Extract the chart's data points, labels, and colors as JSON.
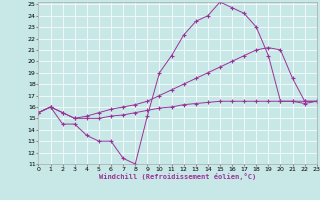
{
  "xlabel": "Windchill (Refroidissement éolien,°C)",
  "background_color": "#c8e8e8",
  "line_color": "#993399",
  "xlim": [
    0,
    23
  ],
  "ylim": [
    11,
    25
  ],
  "xticks": [
    0,
    1,
    2,
    3,
    4,
    5,
    6,
    7,
    8,
    9,
    10,
    11,
    12,
    13,
    14,
    15,
    16,
    17,
    18,
    19,
    20,
    21,
    22,
    23
  ],
  "yticks": [
    11,
    12,
    13,
    14,
    15,
    16,
    17,
    18,
    19,
    20,
    21,
    22,
    23,
    24,
    25
  ],
  "series": [
    {
      "x": [
        0,
        1,
        2,
        3,
        4,
        5,
        6,
        7,
        8,
        9,
        10,
        11,
        12,
        13,
        14,
        15,
        16,
        17,
        18,
        19,
        20,
        21,
        22,
        23
      ],
      "y": [
        15.5,
        16.0,
        14.5,
        14.5,
        13.5,
        13.0,
        13.0,
        11.5,
        11.0,
        15.2,
        19.0,
        20.5,
        22.3,
        23.5,
        24.0,
        25.2,
        24.7,
        24.2,
        23.0,
        20.5,
        16.5,
        16.5,
        16.3,
        16.5
      ]
    },
    {
      "x": [
        0,
        1,
        2,
        3,
        4,
        5,
        6,
        7,
        8,
        9,
        10,
        11,
        12,
        13,
        14,
        15,
        16,
        17,
        18,
        19,
        20,
        21,
        22,
        23
      ],
      "y": [
        15.5,
        16.0,
        15.5,
        15.0,
        15.0,
        15.0,
        15.2,
        15.3,
        15.5,
        15.7,
        15.9,
        16.0,
        16.2,
        16.3,
        16.4,
        16.5,
        16.5,
        16.5,
        16.5,
        16.5,
        16.5,
        16.5,
        16.5,
        16.5
      ]
    },
    {
      "x": [
        0,
        1,
        2,
        3,
        4,
        5,
        6,
        7,
        8,
        9,
        10,
        11,
        12,
        13,
        14,
        15,
        16,
        17,
        18,
        19,
        20,
        21,
        22,
        23
      ],
      "y": [
        15.5,
        16.0,
        15.5,
        15.0,
        15.2,
        15.5,
        15.8,
        16.0,
        16.2,
        16.5,
        17.0,
        17.5,
        18.0,
        18.5,
        19.0,
        19.5,
        20.0,
        20.5,
        21.0,
        21.2,
        21.0,
        18.5,
        16.5,
        16.5
      ]
    }
  ]
}
